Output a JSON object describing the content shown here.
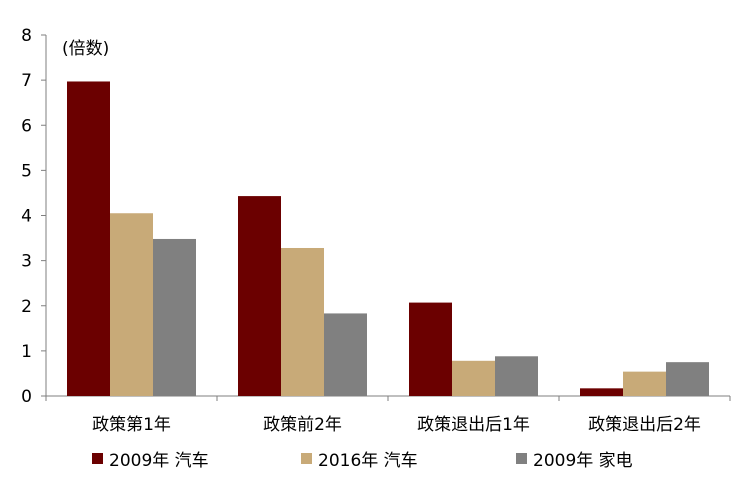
{
  "chart_data": {
    "type": "bar",
    "unit_label": "(倍数)",
    "categories": [
      "政策第1年",
      "政策前2年",
      "政策退出后1年",
      "政策退出后2年"
    ],
    "series": [
      {
        "name": "2009年 汽车",
        "color": "#6b0000",
        "values": [
          6.97,
          4.43,
          2.07,
          0.17
        ]
      },
      {
        "name": "2016年 汽车",
        "color": "#c8aa78",
        "values": [
          4.05,
          3.28,
          0.78,
          0.54
        ]
      },
      {
        "name": "2009年 家电",
        "color": "#808080",
        "values": [
          3.48,
          1.83,
          0.88,
          0.75
        ]
      }
    ],
    "ylim": [
      0,
      8
    ],
    "yticks": [
      "0",
      "1",
      "2",
      "3",
      "4",
      "5",
      "6",
      "7",
      "8"
    ],
    "grid": false,
    "legend_position": "bottom"
  }
}
